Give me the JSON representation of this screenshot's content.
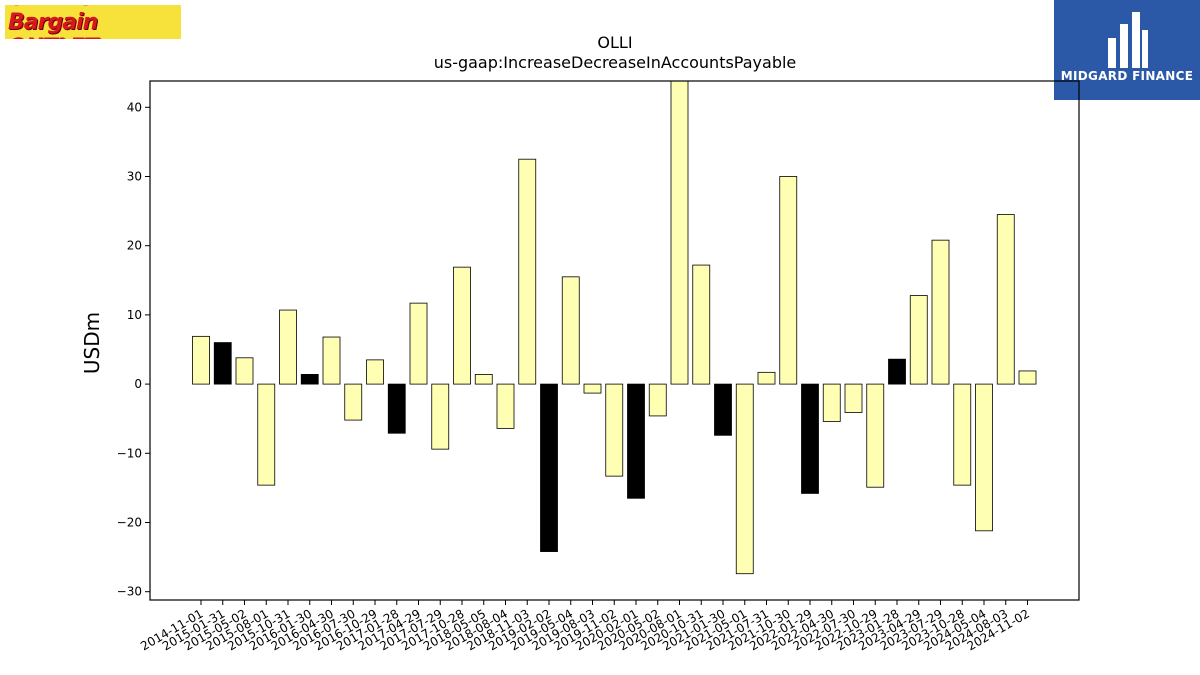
{
  "logos": {
    "left": {
      "text": "OLLIE'S Bargain OUTLET"
    },
    "right": {
      "text": "MIDGARD FINANCE"
    }
  },
  "colors": {
    "bar_default": "#ffffb3",
    "bar_highlight": "#000000",
    "edge": "#000000",
    "logo_left_bg": "#f7e23b",
    "logo_left_text": "#d7161f",
    "logo_right_bg": "#2b59a8"
  },
  "chart_data": {
    "type": "bar",
    "title": "OLLI",
    "subtitle": "us-gaap:IncreaseDecreaseInAccountsPayable",
    "ylabel": "USDm",
    "xlabel": "",
    "ylim": [
      -31.2,
      43.8
    ],
    "yticks": [
      -30,
      -20,
      -10,
      0,
      10,
      20,
      30,
      40
    ],
    "grid": false,
    "categories": [
      "2014-11-01",
      "2015-01-31",
      "2015-05-02",
      "2015-08-01",
      "2015-10-31",
      "2016-01-30",
      "2016-04-30",
      "2016-07-30",
      "2016-10-29",
      "2017-01-28",
      "2017-04-29",
      "2017-07-29",
      "2017-10-28",
      "2018-05-05",
      "2018-08-04",
      "2018-11-03",
      "2019-02-02",
      "2019-05-04",
      "2019-08-03",
      "2019-11-02",
      "2020-02-01",
      "2020-05-02",
      "2020-08-01",
      "2020-10-31",
      "2021-01-30",
      "2021-05-01",
      "2021-07-31",
      "2021-10-30",
      "2022-01-29",
      "2022-04-30",
      "2022-07-30",
      "2022-10-29",
      "2023-01-28",
      "2023-04-29",
      "2023-07-29",
      "2023-10-28",
      "2024-05-04",
      "2024-08-03",
      "2024-11-02"
    ],
    "values": [
      6.9,
      6.0,
      3.8,
      -14.6,
      10.7,
      1.4,
      6.8,
      -5.2,
      3.5,
      -7.1,
      11.7,
      -9.4,
      16.9,
      1.4,
      -6.4,
      32.5,
      -24.2,
      15.5,
      -1.3,
      -13.3,
      -16.5,
      -4.6,
      44.0,
      17.2,
      -7.4,
      -27.4,
      1.7,
      30.0,
      -15.8,
      -5.4,
      -4.1,
      -14.9,
      3.6,
      12.8,
      20.8,
      -14.6,
      -21.2,
      24.5,
      1.9
    ],
    "highlighted": [
      "2015-01-31",
      "2016-01-30",
      "2017-01-28",
      "2019-02-02",
      "2020-02-01",
      "2021-01-30",
      "2022-01-29",
      "2023-01-28"
    ]
  }
}
